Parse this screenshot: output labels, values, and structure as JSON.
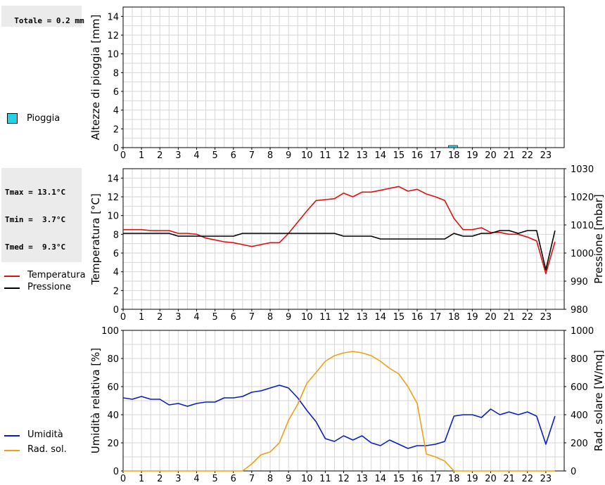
{
  "stats": {
    "rain_total": "Totale = 0.2 mm",
    "temp_lines": [
      "Tmax = 13.1°C",
      "Tmin =  3.7°C",
      "Tmed =  9.3°C"
    ]
  },
  "legend": {
    "rain": "Pioggia",
    "temperature": "Temperatura",
    "pressure": "Pressione",
    "humidity": "Umidità",
    "solar": "Rad. sol."
  },
  "colors": {
    "rain": "#22d3e8",
    "temperature": "#dd1111",
    "pressure": "#000000",
    "humidity": "#0a1fb8",
    "solar": "#f0a010",
    "grid": "#d6d6d6"
  },
  "chart_data": [
    {
      "type": "bar",
      "id": "rain",
      "ylabel": "Altezze di pioggia [mm]",
      "ylim": [
        0,
        15
      ],
      "yticks": [
        0,
        2,
        4,
        6,
        8,
        10,
        12,
        14
      ],
      "xticks": [
        "0",
        "1",
        "2",
        "3",
        "4",
        "5",
        "6",
        "7",
        "8",
        "9",
        "10",
        "11",
        "12",
        "13",
        "14",
        "15",
        "16",
        "17",
        "18",
        "19",
        "20",
        "21",
        "22",
        "23"
      ],
      "grid": true,
      "series": [
        {
          "name": "Pioggia",
          "x": [
            18
          ],
          "values": [
            0.2
          ]
        }
      ]
    },
    {
      "type": "line",
      "id": "temp-pressure",
      "ylabel": "Temperatura [°C]",
      "y2label": "Pressione [mbar]",
      "ylim": [
        0,
        15
      ],
      "yticks": [
        0,
        2,
        4,
        6,
        8,
        10,
        12,
        14
      ],
      "y2lim": [
        980,
        1030
      ],
      "y2ticks": [
        980,
        990,
        1000,
        1010,
        1020,
        1030
      ],
      "xticks": [
        "0",
        "1",
        "2",
        "3",
        "4",
        "5",
        "6",
        "7",
        "8",
        "9",
        "10",
        "11",
        "12",
        "13",
        "14",
        "15",
        "16",
        "17",
        "18",
        "19",
        "20",
        "21",
        "22",
        "23"
      ],
      "grid": true,
      "series": [
        {
          "name": "Temperatura",
          "axis": "left",
          "x": [
            0,
            0.5,
            1,
            1.5,
            2,
            2.5,
            3,
            3.5,
            4,
            4.5,
            5,
            5.5,
            6,
            6.5,
            7,
            7.5,
            8,
            8.5,
            9,
            9.5,
            10,
            10.5,
            11,
            11.5,
            12,
            12.5,
            13,
            13.5,
            14,
            14.5,
            15,
            15.5,
            16,
            16.5,
            17,
            17.5,
            18,
            18.5,
            19,
            19.5,
            20,
            20.5,
            21,
            21.5,
            22,
            22.5,
            23,
            23.5
          ],
          "values": [
            8.5,
            8.5,
            8.5,
            8.4,
            8.4,
            8.4,
            8.1,
            8.1,
            8.0,
            7.6,
            7.4,
            7.2,
            7.1,
            6.9,
            6.7,
            6.9,
            7.1,
            7.1,
            8.1,
            9.3,
            10.5,
            11.6,
            11.7,
            11.8,
            12.4,
            12.0,
            12.5,
            12.5,
            12.7,
            12.9,
            13.1,
            12.6,
            12.8,
            12.3,
            12.0,
            11.6,
            9.7,
            8.5,
            8.5,
            8.7,
            8.2,
            8.2,
            8.0,
            8.0,
            7.7,
            7.3,
            3.8,
            7.2
          ]
        },
        {
          "name": "Pressione",
          "axis": "right",
          "x": [
            0,
            0.5,
            1,
            1.5,
            2,
            2.5,
            3,
            3.5,
            4,
            4.5,
            5,
            5.5,
            6,
            6.5,
            7,
            7.5,
            8,
            8.5,
            9,
            9.5,
            10,
            10.5,
            11,
            11.5,
            12,
            12.5,
            13,
            13.5,
            14,
            14.5,
            15,
            15.5,
            16,
            16.5,
            17,
            17.5,
            18,
            18.5,
            19,
            19.5,
            20,
            20.5,
            21,
            21.5,
            22,
            22.5,
            23,
            23.5
          ],
          "values": [
            1007,
            1007,
            1007,
            1007,
            1007,
            1007,
            1006,
            1006,
            1006,
            1006,
            1006,
            1006,
            1006,
            1007,
            1007,
            1007,
            1007,
            1007,
            1007,
            1007,
            1007,
            1007,
            1007,
            1007,
            1006,
            1006,
            1006,
            1006,
            1005,
            1005,
            1005,
            1005,
            1005,
            1005,
            1005,
            1005,
            1007,
            1006,
            1006,
            1007,
            1007,
            1008,
            1008,
            1007,
            1008,
            1008,
            994,
            1008
          ]
        }
      ]
    },
    {
      "type": "line",
      "id": "humidity-solar",
      "ylabel": "Umidità relativa [%]",
      "y2label": "Rad. solare [W/mq]",
      "ylim": [
        0,
        100
      ],
      "yticks": [
        0,
        20,
        40,
        60,
        80,
        100
      ],
      "y2lim": [
        0,
        1000
      ],
      "y2ticks": [
        0,
        200,
        400,
        600,
        800,
        1000
      ],
      "xticks": [
        "0",
        "1",
        "2",
        "3",
        "4",
        "5",
        "6",
        "7",
        "8",
        "9",
        "10",
        "11",
        "12",
        "13",
        "14",
        "15",
        "16",
        "17",
        "18",
        "19",
        "20",
        "21",
        "22",
        "23"
      ],
      "grid": true,
      "series": [
        {
          "name": "Umidità",
          "axis": "left",
          "x": [
            0,
            0.5,
            1,
            1.5,
            2,
            2.5,
            3,
            3.5,
            4,
            4.5,
            5,
            5.5,
            6,
            6.5,
            7,
            7.5,
            8,
            8.5,
            9,
            9.5,
            10,
            10.5,
            11,
            11.5,
            12,
            12.5,
            13,
            13.5,
            14,
            14.5,
            15,
            15.5,
            16,
            16.5,
            17,
            17.5,
            18,
            18.5,
            19,
            19.5,
            20,
            20.5,
            21,
            21.5,
            22,
            22.5,
            23,
            23.5
          ],
          "values": [
            52,
            51,
            53,
            51,
            51,
            47,
            48,
            46,
            48,
            49,
            49,
            52,
            52,
            53,
            56,
            57,
            59,
            61,
            59,
            52,
            43,
            35,
            23,
            21,
            25,
            22,
            25,
            20,
            18,
            22,
            19,
            16,
            18,
            18,
            19,
            21,
            39,
            40,
            40,
            38,
            44,
            40,
            42,
            40,
            42,
            39,
            19,
            39
          ]
        },
        {
          "name": "Rad. sol.",
          "axis": "right",
          "x": [
            0,
            0.5,
            1,
            1.5,
            2,
            2.5,
            3,
            3.5,
            4,
            4.5,
            5,
            5.5,
            6,
            6.5,
            7,
            7.5,
            8,
            8.5,
            9,
            9.5,
            10,
            10.5,
            11,
            11.5,
            12,
            12.5,
            13,
            13.5,
            14,
            14.5,
            15,
            15.5,
            16,
            16.5,
            17,
            17.5,
            18,
            18.5,
            19,
            19.5,
            20,
            20.5,
            21,
            21.5,
            22,
            22.5,
            23,
            23.5
          ],
          "values": [
            0,
            0,
            0,
            0,
            0,
            0,
            0,
            0,
            0,
            0,
            0,
            0,
            0,
            0,
            50,
            115,
            135,
            200,
            360,
            475,
            625,
            700,
            780,
            820,
            840,
            850,
            840,
            820,
            780,
            730,
            690,
            600,
            480,
            120,
            100,
            70,
            0,
            0,
            0,
            0,
            0,
            0,
            0,
            0,
            0,
            0,
            0,
            0
          ]
        }
      ]
    }
  ]
}
